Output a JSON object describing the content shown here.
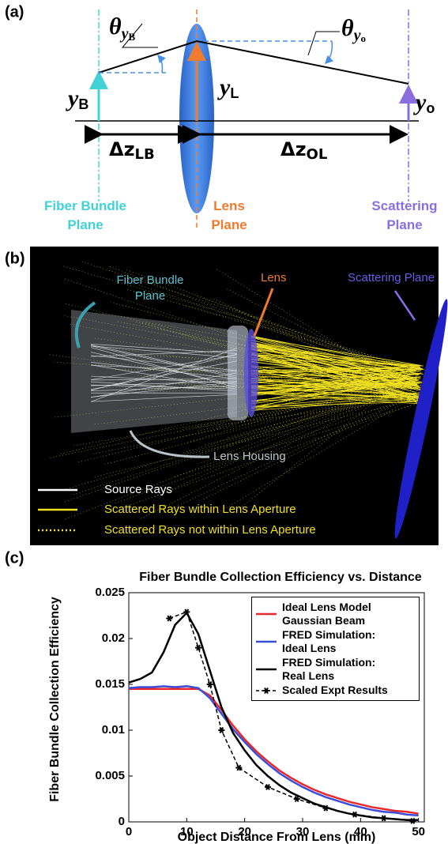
{
  "panel_a": {
    "label": "(a)",
    "theta_b": {
      "main": "θ",
      "sub": "y",
      "subsub": "B"
    },
    "theta_o": {
      "main": "θ",
      "sub": "y",
      "subsub": "o"
    },
    "y_b": {
      "main": "y",
      "sub": "B"
    },
    "y_l": {
      "main": "y",
      "sub": "L"
    },
    "y_o": {
      "main": "y",
      "sub": "o"
    },
    "dz_lb": {
      "main": "Δz",
      "sub": "LB"
    },
    "dz_ol": {
      "main": "Δz",
      "sub": "OL"
    },
    "fiber_plane": [
      "Fiber Bundle",
      "Plane"
    ],
    "lens_plane": [
      "Lens",
      "Plane"
    ],
    "scatter_plane": [
      "Scattering",
      "Plane"
    ]
  },
  "panel_b": {
    "label": "(b)",
    "fiber_plane": [
      "Fiber Bundle",
      "Plane"
    ],
    "lens": "Lens",
    "scatter_plane": "Scattering Plane",
    "housing": "Lens Housing",
    "legend": [
      "Source Rays",
      "Scattered Rays within Lens Aperture",
      "Scattered Rays not within Lens Aperture"
    ]
  },
  "panel_c_label": "(c)",
  "chart_data": {
    "type": "line",
    "title": "Fiber Bundle Collection Efficiency vs. Distance",
    "x_label": "Object Distance From Lens (mm)",
    "y_label": "Fiber Bundle Collection Efficiency",
    "xlim": [
      0,
      51
    ],
    "ylim": [
      0,
      0.025
    ],
    "xticks": [
      0,
      10,
      20,
      30,
      40,
      50
    ],
    "yticks": [
      0,
      0.005,
      0.01,
      0.015,
      0.02,
      0.025
    ],
    "series": [
      {
        "name": "Ideal Lens Model\nGaussian Beam",
        "color": "#e8282c",
        "style": "solid",
        "x": [
          0,
          2,
          4,
          6,
          8,
          10,
          12,
          14,
          16,
          18,
          20,
          22,
          24,
          26,
          28,
          30,
          32,
          34,
          36,
          38,
          40,
          42,
          44,
          46,
          48,
          50
        ],
        "values": [
          0.0145,
          0.0145,
          0.0145,
          0.0145,
          0.0145,
          0.0145,
          0.0145,
          0.0138,
          0.0122,
          0.0105,
          0.009,
          0.0077,
          0.0066,
          0.0056,
          0.0048,
          0.0041,
          0.0035,
          0.003,
          0.0026,
          0.0022,
          0.0019,
          0.0016,
          0.0014,
          0.0012,
          0.0011,
          0.0009
        ]
      },
      {
        "name": "FRED Simulation:\nIdeal Lens",
        "color": "#3a4ed8",
        "style": "solid",
        "x": [
          0,
          2,
          4,
          6,
          8,
          10,
          12,
          14,
          16,
          18,
          20,
          22,
          24,
          26,
          28,
          30,
          32,
          34,
          36,
          38,
          40,
          42,
          44,
          46,
          48,
          50
        ],
        "values": [
          0.0146,
          0.0147,
          0.0147,
          0.0148,
          0.0147,
          0.0148,
          0.0146,
          0.0135,
          0.0118,
          0.0101,
          0.0087,
          0.0074,
          0.0063,
          0.0053,
          0.0045,
          0.0038,
          0.0032,
          0.0027,
          0.0023,
          0.0019,
          0.0016,
          0.0013,
          0.0011,
          0.001,
          0.0008,
          0.0007
        ]
      },
      {
        "name": "FRED Simulation:\nReal Lens",
        "color": "#000000",
        "style": "solid",
        "x": [
          0,
          2,
          4,
          6,
          8,
          10,
          12,
          14,
          16,
          18,
          20,
          22,
          24,
          26,
          28,
          30,
          32,
          34,
          36,
          38,
          40,
          42,
          44,
          46,
          48,
          50
        ],
        "values": [
          0.0152,
          0.0156,
          0.0163,
          0.0185,
          0.0215,
          0.0228,
          0.0205,
          0.0165,
          0.0125,
          0.0097,
          0.0078,
          0.0062,
          0.005,
          0.004,
          0.0032,
          0.0026,
          0.002,
          0.0016,
          0.0012,
          0.0009,
          0.0007,
          0.0005,
          0.0004,
          0.0003,
          0.0002,
          0.0002
        ]
      },
      {
        "name": "Scaled Expt Results",
        "color": "#000000",
        "style": "dashed-marker",
        "x": [
          7,
          10,
          12,
          14,
          16,
          19,
          24,
          29,
          34,
          39,
          44,
          49
        ],
        "values": [
          0.0222,
          0.0229,
          0.019,
          0.015,
          0.01,
          0.0059,
          0.0038,
          0.0025,
          0.0015,
          0.0008,
          0.0004,
          0.0001
        ]
      }
    ],
    "legend": "upper right"
  }
}
